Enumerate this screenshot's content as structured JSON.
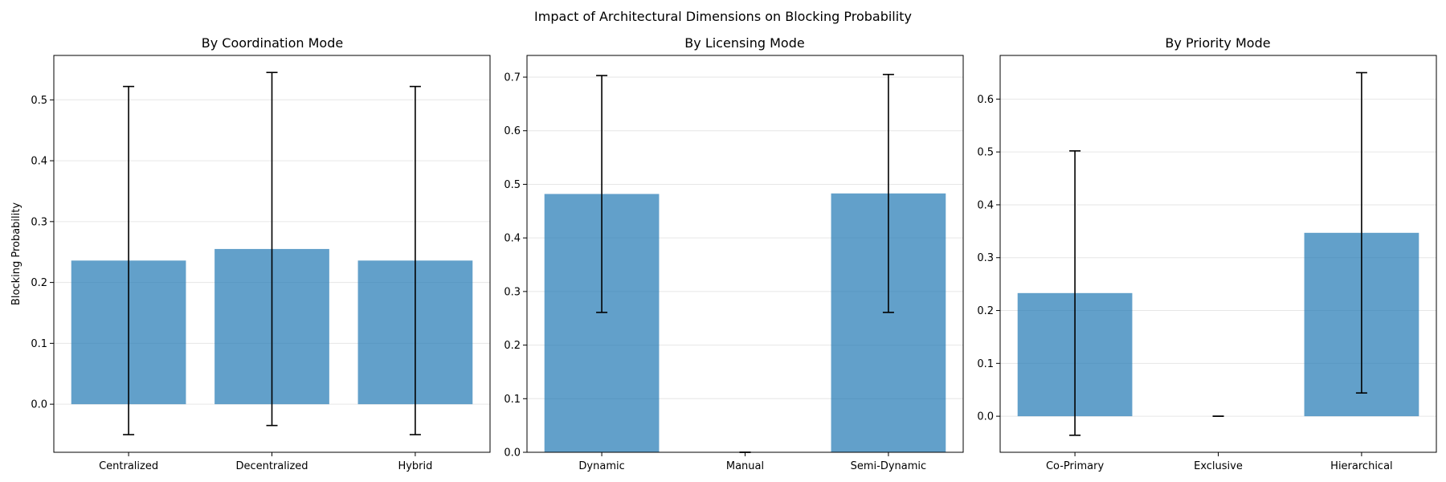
{
  "chart_data": {
    "title": "Impact of Architectural Dimensions on Blocking Probability",
    "colors": {
      "bar": "#1f77b4",
      "error_bar": "#000000",
      "grid": "#e6e6e6"
    },
    "panels": [
      {
        "type": "bar",
        "title": "By Coordination Mode",
        "ylabel": "Blocking Probability",
        "xlabel": "",
        "categories": [
          "Centralized",
          "Decentralized",
          "Hybrid"
        ],
        "values": [
          0.236,
          0.255,
          0.236
        ],
        "errors": [
          0.286,
          0.29,
          0.286
        ],
        "ylim": [
          -0.079,
          0.573
        ],
        "yticks": [
          0.0,
          0.1,
          0.2,
          0.3,
          0.4,
          0.5
        ],
        "ytick_labels": [
          "0.0",
          "0.1",
          "0.2",
          "0.3",
          "0.4",
          "0.5"
        ],
        "grid": true
      },
      {
        "type": "bar",
        "title": "By Licensing Mode",
        "ylabel": "",
        "xlabel": "",
        "categories": [
          "Dynamic",
          "Manual",
          "Semi-Dynamic"
        ],
        "values": [
          0.482,
          0.0,
          0.483
        ],
        "errors": [
          0.221,
          0.0,
          0.222
        ],
        "ylim": [
          0.0,
          0.7405
        ],
        "yticks": [
          0.0,
          0.1,
          0.2,
          0.3,
          0.4,
          0.5,
          0.6,
          0.7
        ],
        "ytick_labels": [
          "0.0",
          "0.1",
          "0.2",
          "0.3",
          "0.4",
          "0.5",
          "0.6",
          "0.7"
        ],
        "grid": true
      },
      {
        "type": "bar",
        "title": "By Priority Mode",
        "ylabel": "",
        "xlabel": "",
        "categories": [
          "Co-Primary",
          "Exclusive",
          "Hierarchical"
        ],
        "values": [
          0.233,
          0.0,
          0.347
        ],
        "errors": [
          0.269,
          0.0,
          0.303
        ],
        "ylim": [
          -0.0682,
          0.6826
        ],
        "yticks": [
          0.0,
          0.1,
          0.2,
          0.3,
          0.4,
          0.5,
          0.6
        ],
        "ytick_labels": [
          "0.0",
          "0.1",
          "0.2",
          "0.3",
          "0.4",
          "0.5",
          "0.6"
        ],
        "grid": true
      }
    ]
  }
}
